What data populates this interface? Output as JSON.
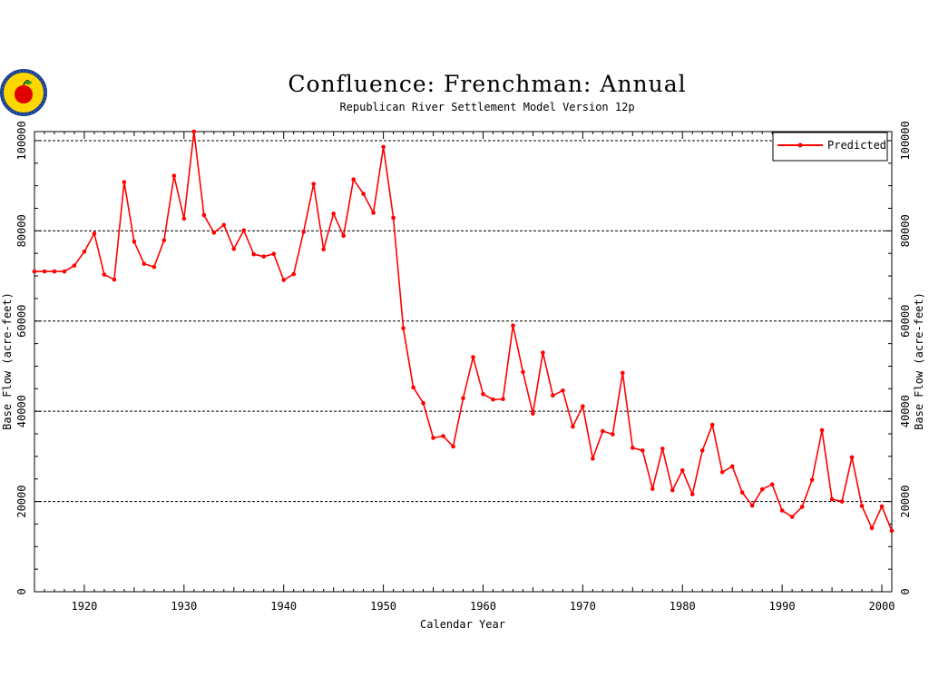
{
  "chart_data": {
    "type": "line",
    "title": "Confluence:  Frenchman:  Annual",
    "subtitle": "Republican River Settlement Model Version 12p",
    "xlabel": "Calendar Year",
    "ylabel": "Base Flow (acre-feet)",
    "xlim": [
      1915,
      2001
    ],
    "ylim": [
      0,
      102000
    ],
    "x_ticks": [
      1920,
      1930,
      1940,
      1950,
      1960,
      1970,
      1980,
      1990,
      2000
    ],
    "x_tick_labels": [
      "1920",
      "1930",
      "1940",
      "1950",
      "1960",
      "1970",
      "1980",
      "1990",
      "2000"
    ],
    "y_ticks": [
      0,
      20000,
      40000,
      60000,
      80000,
      100000
    ],
    "y_tick_labels": [
      "0",
      "20000",
      "40000",
      "60000",
      "80000",
      "100000"
    ],
    "grid": "horizontal dashed at major y ticks",
    "legend_position": "top-right",
    "series": [
      {
        "name": "Predicted",
        "color": "#ff0000",
        "x": [
          1915,
          1916,
          1917,
          1918,
          1919,
          1920,
          1921,
          1922,
          1923,
          1924,
          1925,
          1926,
          1927,
          1928,
          1929,
          1930,
          1931,
          1932,
          1933,
          1934,
          1935,
          1936,
          1937,
          1938,
          1939,
          1940,
          1941,
          1942,
          1943,
          1944,
          1945,
          1946,
          1947,
          1948,
          1949,
          1950,
          1951,
          1952,
          1953,
          1954,
          1955,
          1956,
          1957,
          1958,
          1959,
          1960,
          1961,
          1962,
          1963,
          1964,
          1965,
          1966,
          1967,
          1968,
          1969,
          1970,
          1971,
          1972,
          1973,
          1974,
          1975,
          1976,
          1977,
          1978,
          1979,
          1980,
          1981,
          1982,
          1983,
          1984,
          1985,
          1986,
          1987,
          1988,
          1989,
          1990,
          1991,
          1992,
          1993,
          1994,
          1995,
          1996,
          1997,
          1998,
          1999,
          2000,
          2001
        ],
        "y": [
          71000,
          71000,
          71000,
          71000,
          72300,
          75400,
          79400,
          70300,
          69200,
          90800,
          77600,
          72700,
          72000,
          77900,
          92200,
          82700,
          102000,
          83500,
          79600,
          81300,
          76000,
          80100,
          74800,
          74300,
          74900,
          69100,
          70400,
          79800,
          90400,
          75900,
          83800,
          78900,
          91400,
          88200,
          84000,
          98600,
          82900,
          58400,
          45300,
          41800,
          34100,
          34500,
          32200,
          42900,
          52000,
          43800,
          42600,
          42700,
          59000,
          48700,
          39500,
          53000,
          43500,
          44600,
          36600,
          41100,
          29500,
          35600,
          34900,
          48500,
          31900,
          31300,
          22800,
          31700,
          22500,
          26900,
          21600,
          31300,
          37000,
          26500,
          27800,
          22000,
          19100,
          22700,
          23800,
          18000,
          16600,
          18800,
          24800,
          35800,
          20500,
          20000,
          29800,
          19000,
          14100,
          18900,
          13500
        ]
      }
    ]
  },
  "legend": {
    "entry": "Predicted"
  }
}
